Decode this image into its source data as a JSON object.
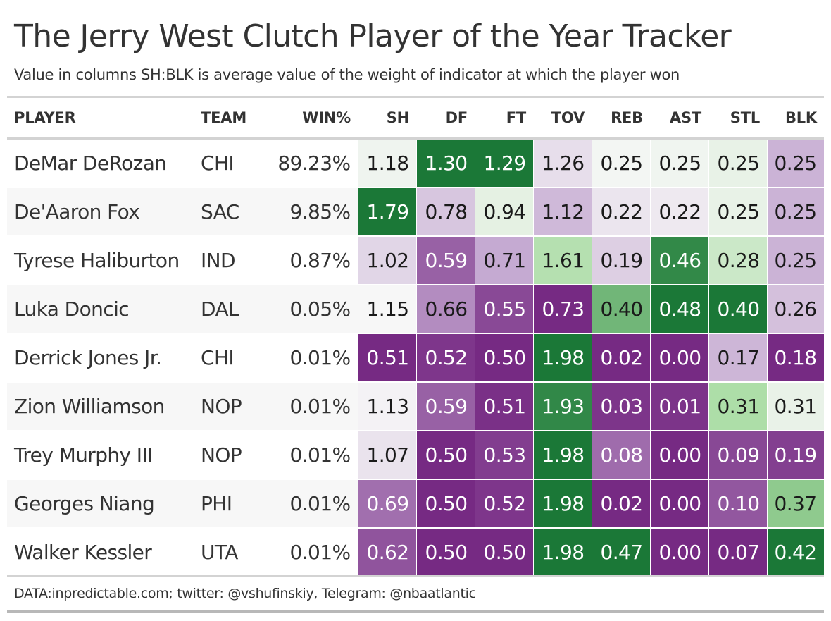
{
  "title": "The Jerry West Clutch Player of the Year Tracker",
  "subtitle": "Value in columns SH:BLK is average value of the weight of indicator at which the player won",
  "source": "DATA:inpredictable.com; twitter: @vshufinskiy, Telegram: @nbaatlantic",
  "chart_data": {
    "type": "table",
    "columns": [
      "PLAYER",
      "TEAM",
      "WIN%",
      "SH",
      "DF",
      "FT",
      "TOV",
      "REB",
      "AST",
      "STL",
      "BLK"
    ],
    "rows": [
      {
        "player": "DeMar DeRozan",
        "team": "CHI",
        "win": "89.23%",
        "values": [
          "1.18",
          "1.30",
          "1.29",
          "1.26",
          "0.25",
          "0.25",
          "0.25",
          "0.25"
        ]
      },
      {
        "player": "De'Aaron Fox",
        "team": "SAC",
        "win": "9.85%",
        "values": [
          "1.79",
          "0.78",
          "0.94",
          "1.12",
          "0.22",
          "0.22",
          "0.25",
          "0.25"
        ]
      },
      {
        "player": "Tyrese Haliburton",
        "team": "IND",
        "win": "0.87%",
        "values": [
          "1.02",
          "0.59",
          "0.71",
          "1.61",
          "0.19",
          "0.46",
          "0.28",
          "0.25"
        ]
      },
      {
        "player": "Luka Doncic",
        "team": "DAL",
        "win": "0.05%",
        "values": [
          "1.15",
          "0.66",
          "0.55",
          "0.73",
          "0.40",
          "0.48",
          "0.40",
          "0.26"
        ]
      },
      {
        "player": "Derrick Jones Jr.",
        "team": "CHI",
        "win": "0.01%",
        "values": [
          "0.51",
          "0.52",
          "0.50",
          "1.98",
          "0.02",
          "0.00",
          "0.17",
          "0.18"
        ]
      },
      {
        "player": "Zion Williamson",
        "team": "NOP",
        "win": "0.01%",
        "values": [
          "1.13",
          "0.59",
          "0.51",
          "1.93",
          "0.03",
          "0.01",
          "0.31",
          "0.31"
        ]
      },
      {
        "player": "Trey Murphy III",
        "team": "NOP",
        "win": "0.01%",
        "values": [
          "1.07",
          "0.50",
          "0.53",
          "1.98",
          "0.08",
          "0.00",
          "0.09",
          "0.19"
        ]
      },
      {
        "player": "Georges Niang",
        "team": "PHI",
        "win": "0.01%",
        "values": [
          "0.69",
          "0.50",
          "0.52",
          "1.98",
          "0.02",
          "0.00",
          "0.10",
          "0.37"
        ]
      },
      {
        "player": "Walker Kessler",
        "team": "UTA",
        "win": "0.01%",
        "values": [
          "0.62",
          "0.50",
          "0.50",
          "1.98",
          "0.47",
          "0.00",
          "0.07",
          "0.42"
        ]
      }
    ],
    "color_scale": {
      "low": "#762a83",
      "mid_low": "#c2a5cf",
      "mid": "#f7f7f7",
      "mid_high": "#a6dba0",
      "high": "#1b7837",
      "scaling": "per column, min to max"
    },
    "row_banding": "#f7f7f7"
  }
}
